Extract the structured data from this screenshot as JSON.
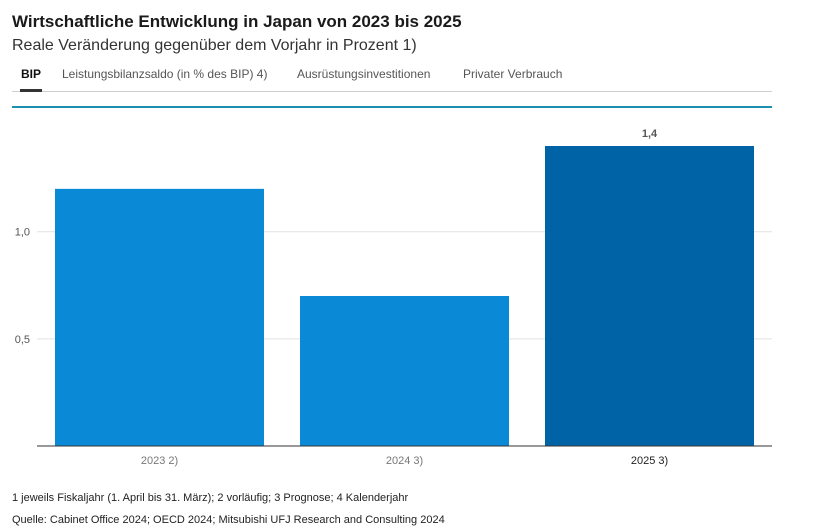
{
  "header": {
    "title": "Wirtschaftliche Entwicklung in Japan von 2023 bis 2025",
    "subtitle": "Reale Veränderung gegenüber dem Vorjahr in Prozent 1)"
  },
  "tabs": [
    {
      "label": "BIP",
      "active": true
    },
    {
      "label": "Leistungsbilanzsaldo (in % des BIP) 4)",
      "active": false
    },
    {
      "label": "Ausrüstungsinvestitionen",
      "active": false
    },
    {
      "label": "Privater Verbrauch",
      "active": false
    }
  ],
  "colors": {
    "accent": "#1b8fb0",
    "bar": "#0a8ad6",
    "bar_highlight": "#0063a6"
  },
  "chart_data": {
    "type": "bar",
    "categories": [
      "2023 2)",
      "2024 3)",
      "2025 3)"
    ],
    "values": [
      1.2,
      0.7,
      1.4
    ],
    "highlight_index": 2,
    "data_labels": [
      "",
      "",
      "1,4"
    ],
    "y_ticks": [
      "0,5",
      "1,0"
    ],
    "y_tick_values": [
      0.5,
      1.0
    ],
    "ylim": [
      0,
      1.4
    ],
    "grid": true
  },
  "footer": {
    "footnote": "1 jeweils Fiskaljahr (1. April bis 31. März); 2 vorläufig; 3 Prognose; 4 Kalenderjahr",
    "source": "Quelle: Cabinet Office 2024; OECD 2024; Mitsubishi UFJ Research and Consulting 2024"
  }
}
